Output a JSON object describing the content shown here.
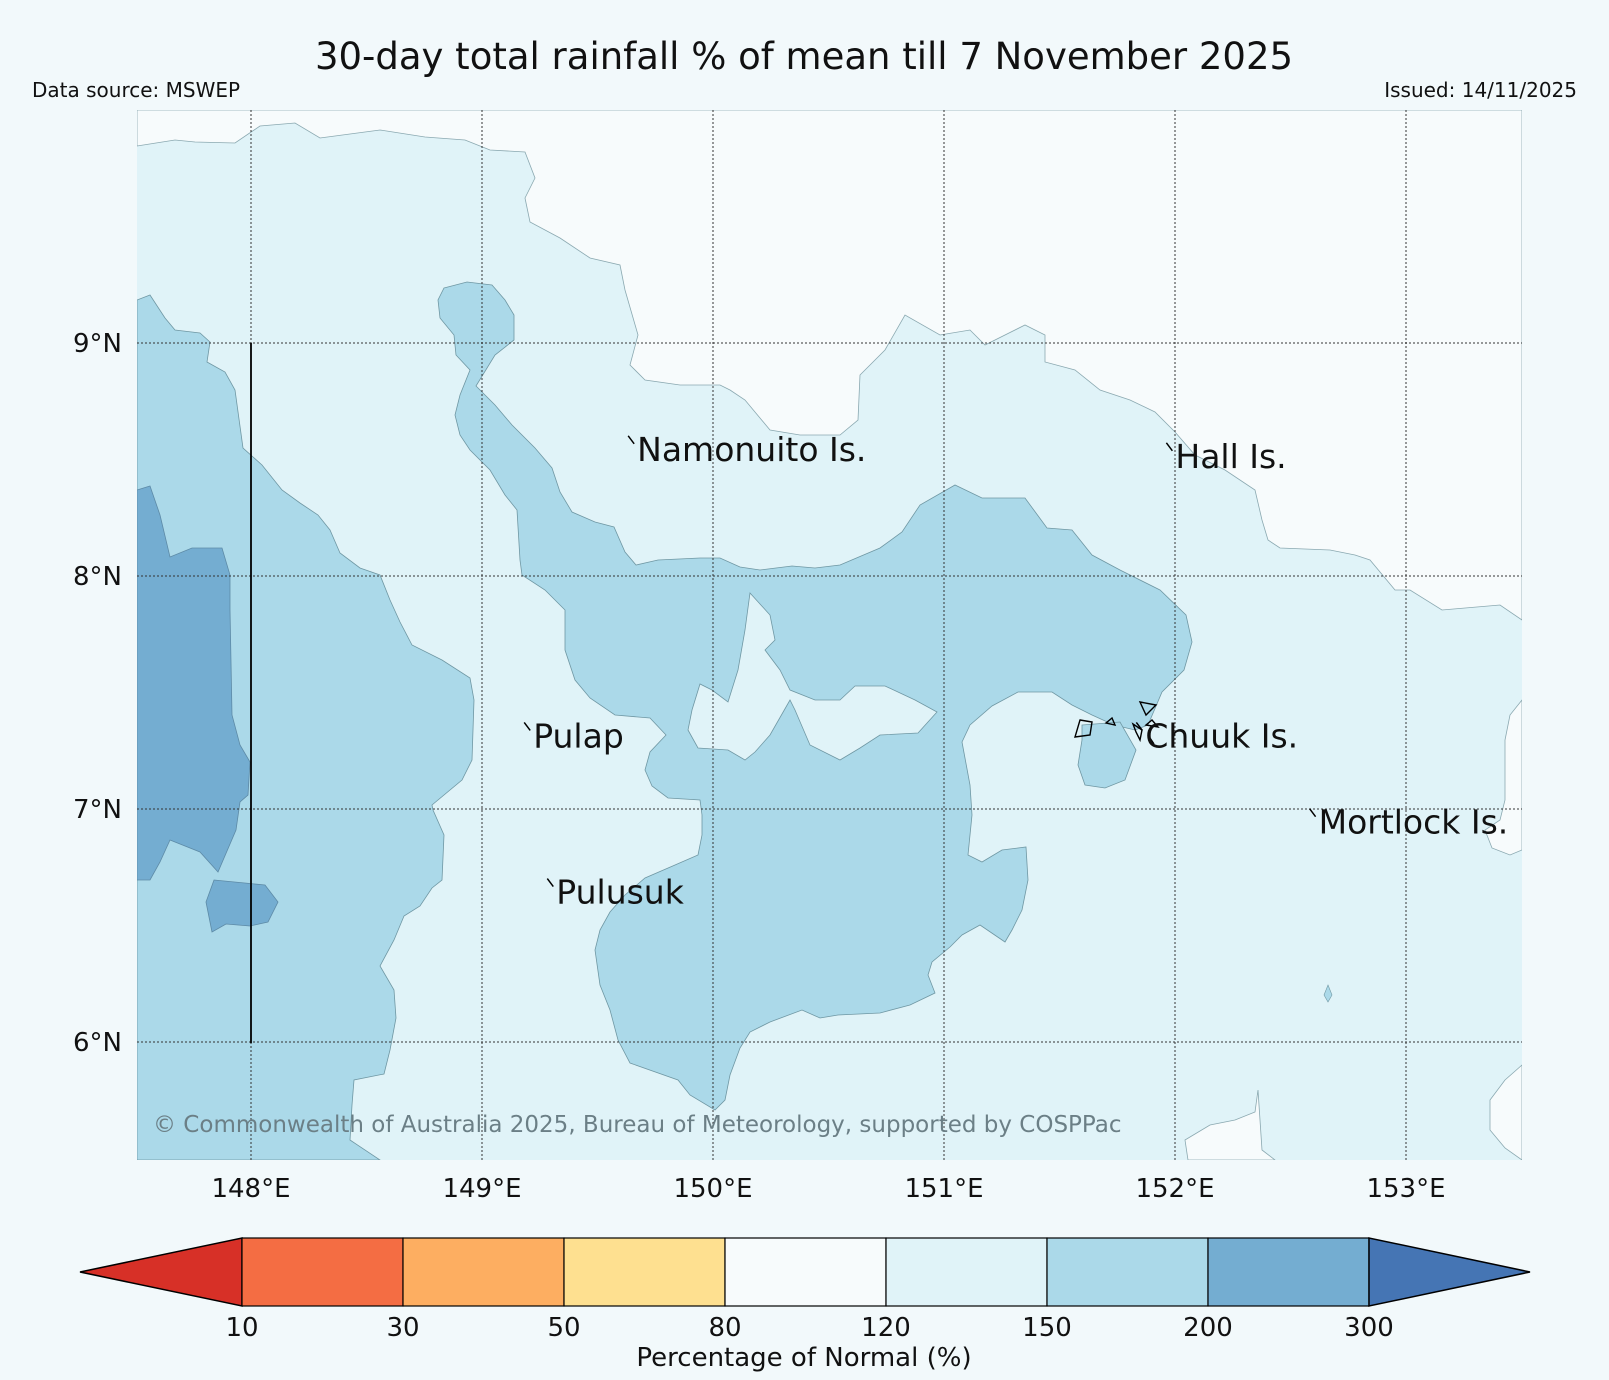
{
  "title": "30-day total rainfall % of mean till 7 November 2025",
  "source_label": "Data source: MSWEP",
  "issued_label": "Issued: 14/11/2025",
  "copyright": "© Commonwealth of Australia 2025, Bureau of Meteorology, supported by COSPPac",
  "axes": {
    "longitudes": [
      148,
      149,
      150,
      151,
      152,
      153
    ],
    "latitudes": [
      9,
      8,
      7,
      6
    ],
    "lon_labels": [
      "148°E",
      "149°E",
      "150°E",
      "151°E",
      "152°E",
      "153°E"
    ],
    "lat_labels": [
      "9°N",
      "8°N",
      "7°N",
      "6°N"
    ],
    "lon_range": [
      147.5,
      153.5
    ],
    "lat_range": [
      5.5,
      9.85
    ]
  },
  "places": [
    {
      "name": "Namonuito Is.",
      "lon": 149.65,
      "lat": 8.58
    },
    {
      "name": "Hall Is.",
      "lon": 151.98,
      "lat": 8.55
    },
    {
      "name": "Pulap",
      "lon": 149.2,
      "lat": 7.35
    },
    {
      "name": "Chuuk Is.",
      "lon": 151.85,
      "lat": 7.35
    },
    {
      "name": "Mortlock Is.",
      "lon": 152.6,
      "lat": 6.98
    },
    {
      "name": "Pulusuk",
      "lon": 149.3,
      "lat": 6.68
    }
  ],
  "legend": {
    "label": "Percentage of Normal (%)",
    "ticks": [
      "10",
      "30",
      "50",
      "80",
      "120",
      "150",
      "200",
      "300"
    ],
    "colors": {
      "lt10": "#d73027",
      "c10_30": "#f46d43",
      "c30_50": "#fdae61",
      "c50_80": "#fee090",
      "c80_120": "#f7fbfc",
      "c120_150": "#e0f3f8",
      "c150_200": "#abd9e9",
      "c200_300": "#74add1",
      "gt300": "#4575b4"
    }
  }
}
